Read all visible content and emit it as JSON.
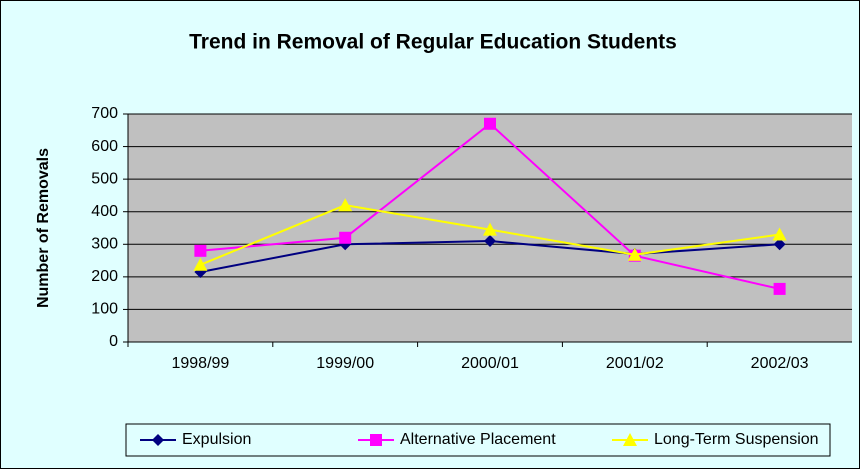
{
  "chart_data": {
    "type": "line",
    "title": "Trend in Removal of Regular Education Students",
    "y_label": "Number of Removals",
    "categories": [
      "1998/99",
      "1999/00",
      "2000/01",
      "2001/02",
      "2002/03"
    ],
    "series": [
      {
        "name": "Expulsion",
        "color": "#000080",
        "values": [
          215,
          300,
          310,
          270,
          300
        ]
      },
      {
        "name": "Alternative Placement",
        "color": "#ff00ff",
        "values": [
          280,
          320,
          670,
          265,
          163
        ]
      },
      {
        "name": "Long-Term Suspension",
        "color": "#ffff00",
        "values": [
          237,
          420,
          345,
          268,
          330
        ]
      }
    ],
    "ylim": [
      0,
      700
    ],
    "yticks": [
      0,
      100,
      200,
      300,
      400,
      500,
      600,
      700
    ],
    "grid": true,
    "legend": "bottom"
  }
}
